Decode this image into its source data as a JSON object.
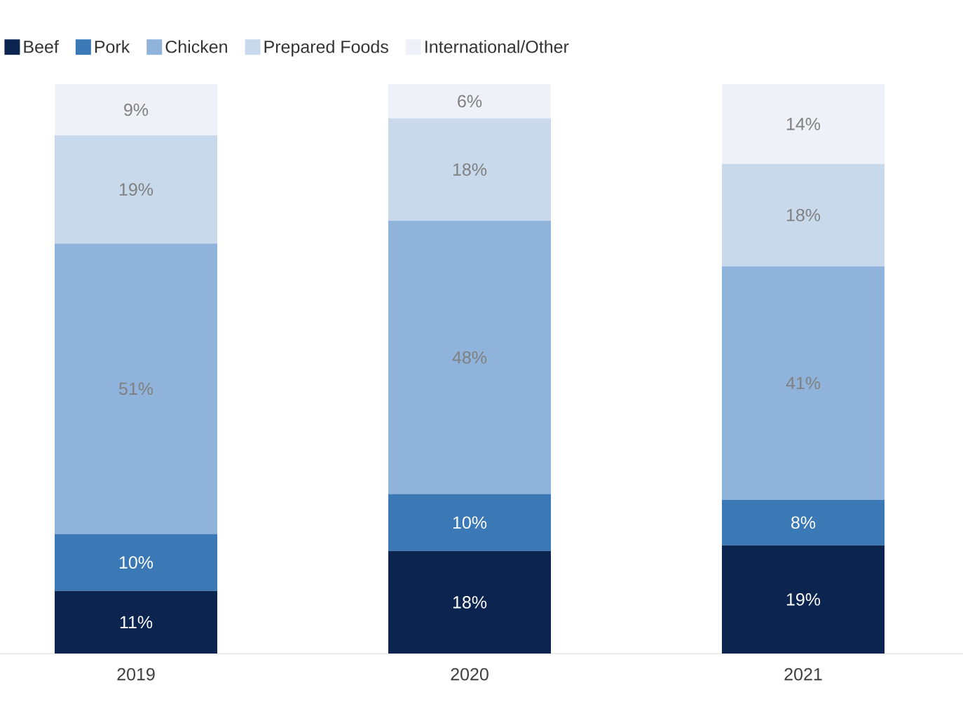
{
  "chart_data": {
    "type": "bar",
    "stacked": true,
    "categories": [
      "2019",
      "2020",
      "2021"
    ],
    "tick_labels": "x",
    "legend": "top left",
    "series": [
      {
        "name": "Beef",
        "color": "#0b2450",
        "values": [
          11,
          18,
          19
        ],
        "value_labels": [
          "11%",
          "18%",
          "19%"
        ]
      },
      {
        "name": "Pork",
        "color": "#3b78b6",
        "values": [
          10,
          10,
          8
        ],
        "value_labels": [
          "10%",
          "10%",
          "8%"
        ]
      },
      {
        "name": "Chicken",
        "color": "#8fb3da",
        "values": [
          51,
          48,
          41
        ],
        "value_labels": [
          "51%",
          "48%",
          "41%"
        ]
      },
      {
        "name": "Prepared Foods",
        "color": "#c8d9ec",
        "values": [
          19,
          18,
          18
        ],
        "value_labels": [
          "19%",
          "18%",
          "18%"
        ]
      },
      {
        "name": "International/Other",
        "color": "#eef2f8",
        "values": [
          9,
          6,
          14
        ],
        "value_labels": [
          "9%",
          "6%",
          "14%"
        ]
      }
    ]
  }
}
